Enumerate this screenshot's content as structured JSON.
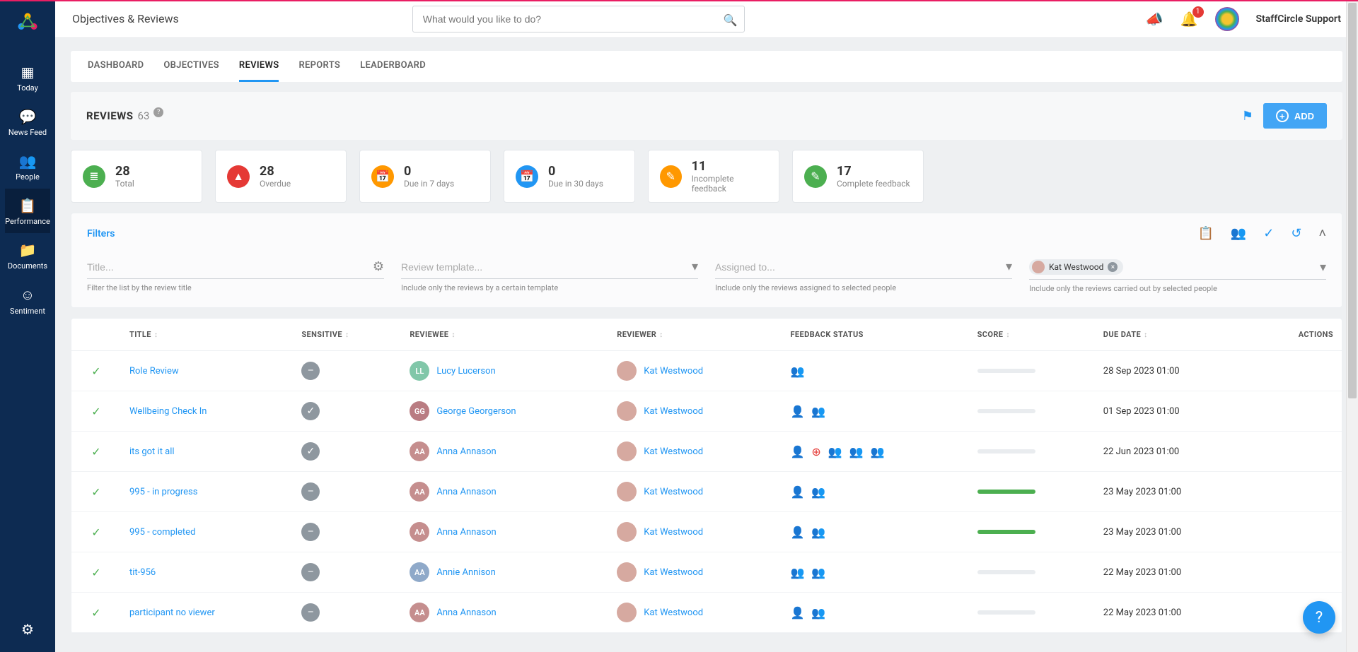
{
  "header": {
    "page_title": "Objectives & Reviews",
    "search_placeholder": "What would you like to do?",
    "notification_count": "1",
    "user_name": "StaffCircle Support"
  },
  "sidebar": {
    "items": [
      {
        "icon": "dashboard",
        "label": "Today"
      },
      {
        "icon": "chat",
        "label": "News Feed"
      },
      {
        "icon": "people",
        "label": "People"
      },
      {
        "icon": "assignment",
        "label": "Performance"
      },
      {
        "icon": "folder",
        "label": "Documents"
      },
      {
        "icon": "smile",
        "label": "Sentiment"
      }
    ],
    "active_index": 3
  },
  "tabs": [
    "DASHBOARD",
    "OBJECTIVES",
    "REVIEWS",
    "REPORTS",
    "LEADERBOARD"
  ],
  "active_tab_index": 2,
  "section": {
    "title": "REVIEWS",
    "count": "63",
    "add_label": "ADD"
  },
  "stats": [
    {
      "value": "28",
      "label": "Total",
      "color": "#4caf50",
      "icon": "≣"
    },
    {
      "value": "28",
      "label": "Overdue",
      "color": "#e53935",
      "icon": "▲"
    },
    {
      "value": "0",
      "label": "Due in 7 days",
      "color": "#ff9800",
      "icon": "📅"
    },
    {
      "value": "0",
      "label": "Due in 30 days",
      "color": "#2196f3",
      "icon": "📅"
    },
    {
      "value": "11",
      "label": "Incomplete feedback",
      "color": "#ff9800",
      "icon": "✎"
    },
    {
      "value": "17",
      "label": "Complete feedback",
      "color": "#4caf50",
      "icon": "✎"
    }
  ],
  "filters": {
    "title": "Filters",
    "fields": [
      {
        "placeholder": "Title...",
        "help": "Filter the list by the review title",
        "suffix": "filter"
      },
      {
        "placeholder": "Review template...",
        "help": "Include only the reviews by a certain template",
        "suffix": "caret"
      },
      {
        "placeholder": "Assigned to...",
        "help": "Include only the reviews assigned to selected people",
        "suffix": "caret"
      },
      {
        "placeholder": "",
        "help": "Include only the reviews carried out by selected people",
        "suffix": "caret",
        "chip": "Kat Westwood"
      }
    ]
  },
  "table": {
    "columns": [
      "",
      "TITLE",
      "SENSITIVE",
      "REVIEWEE",
      "REVIEWER",
      "FEEDBACK STATUS",
      "SCORE",
      "DUE DATE",
      "ACTIONS"
    ],
    "rows": [
      {
        "title": "Role Review",
        "sensitive": "minus",
        "reviewee": {
          "name": "Lucy Lucerson",
          "initials": "LL",
          "bg": "#81c7a9"
        },
        "reviewer": {
          "name": "Kat Westwood",
          "bg": "#d6a9a0"
        },
        "feedback": [
          {
            "icon": "👥",
            "cls": "fb-green"
          }
        ],
        "score": 0,
        "due": "28 Sep 2023 01:00"
      },
      {
        "title": "Wellbeing Check In",
        "sensitive": "check",
        "reviewee": {
          "name": "George Georgerson",
          "initials": "GG",
          "bg": "#b97c82"
        },
        "reviewer": {
          "name": "Kat Westwood",
          "bg": "#d6a9a0"
        },
        "feedback": [
          {
            "icon": "👤",
            "cls": "fb-green"
          },
          {
            "icon": "👥",
            "cls": "fb-green"
          }
        ],
        "score": 0,
        "due": "01 Sep 2023 01:00"
      },
      {
        "title": "its got it all",
        "sensitive": "check",
        "reviewee": {
          "name": "Anna Annason",
          "initials": "AA",
          "bg": "#c58e8e"
        },
        "reviewer": {
          "name": "Kat Westwood",
          "bg": "#d6a9a0"
        },
        "feedback": [
          {
            "icon": "👤",
            "cls": "fb-red"
          },
          {
            "icon": "⊕",
            "cls": "fb-red"
          },
          {
            "icon": "👥",
            "cls": "fb-red"
          },
          {
            "icon": "👥",
            "cls": "fb-red"
          },
          {
            "icon": "👥",
            "cls": "fb-red"
          }
        ],
        "score": 0,
        "due": "22 Jun 2023 01:00"
      },
      {
        "title": "995 - in progress",
        "sensitive": "minus",
        "reviewee": {
          "name": "Anna Annason",
          "initials": "AA",
          "bg": "#c58e8e"
        },
        "reviewer": {
          "name": "Kat Westwood",
          "bg": "#d6a9a0"
        },
        "feedback": [
          {
            "icon": "👤",
            "cls": "fb-green"
          },
          {
            "icon": "👥",
            "cls": "fb-green"
          }
        ],
        "score": 100,
        "due": "23 May 2023 01:00"
      },
      {
        "title": "995 - completed",
        "sensitive": "minus",
        "reviewee": {
          "name": "Anna Annason",
          "initials": "AA",
          "bg": "#c58e8e"
        },
        "reviewer": {
          "name": "Kat Westwood",
          "bg": "#d6a9a0"
        },
        "feedback": [
          {
            "icon": "👤",
            "cls": "fb-green"
          },
          {
            "icon": "👥",
            "cls": "fb-green"
          }
        ],
        "score": 100,
        "due": "23 May 2023 01:00"
      },
      {
        "title": "tit-956",
        "sensitive": "minus",
        "reviewee": {
          "name": "Annie Annison",
          "initials": "AA",
          "bg": "#8fa9c9"
        },
        "reviewer": {
          "name": "Kat Westwood",
          "bg": "#d6a9a0"
        },
        "feedback": [
          {
            "icon": "👥",
            "cls": "fb-red"
          },
          {
            "icon": "👥",
            "cls": "fb-red"
          }
        ],
        "score": 0,
        "due": "22 May 2023 01:00"
      },
      {
        "title": "participant no viewer",
        "sensitive": "minus",
        "reviewee": {
          "name": "Anna Annason",
          "initials": "AA",
          "bg": "#c58e8e"
        },
        "reviewer": {
          "name": "Kat Westwood",
          "bg": "#d6a9a0"
        },
        "feedback": [
          {
            "icon": "👤",
            "cls": "fb-green"
          },
          {
            "icon": "👥",
            "cls": "fb-green"
          }
        ],
        "score": 0,
        "due": "22 May 2023 01:00"
      }
    ]
  },
  "colors": {
    "accent": "#2196f3",
    "sidebar": "#0d2b52"
  }
}
